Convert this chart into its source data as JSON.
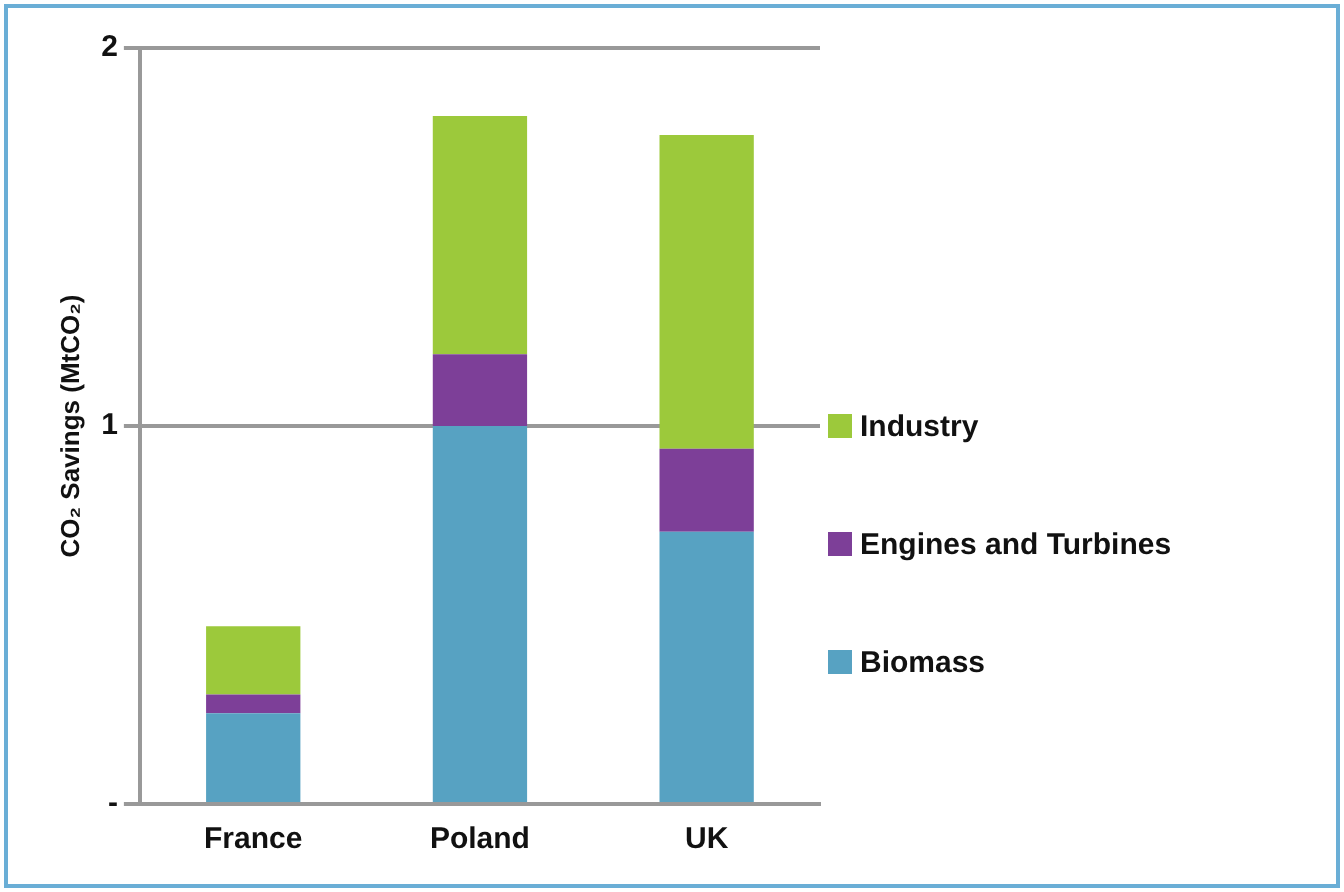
{
  "chart_data": {
    "type": "bar",
    "stacked": true,
    "ylabel": "CO₂ Savings (MtCO₂)",
    "categories": [
      "France",
      "Poland",
      "UK"
    ],
    "series": [
      {
        "name": "Biomass",
        "color": "#57a2c2",
        "values": [
          0.24,
          1.0,
          0.72
        ]
      },
      {
        "name": "Engines and Turbines",
        "color": "#7d3f98",
        "values": [
          0.05,
          0.19,
          0.22
        ]
      },
      {
        "name": "Industry",
        "color": "#9cc93b",
        "values": [
          0.18,
          0.63,
          0.83
        ]
      }
    ],
    "ylim": [
      0,
      2
    ],
    "yticks": [
      {
        "value": 0,
        "label": "-"
      },
      1,
      2
    ],
    "grid": "y",
    "legend": "right"
  }
}
